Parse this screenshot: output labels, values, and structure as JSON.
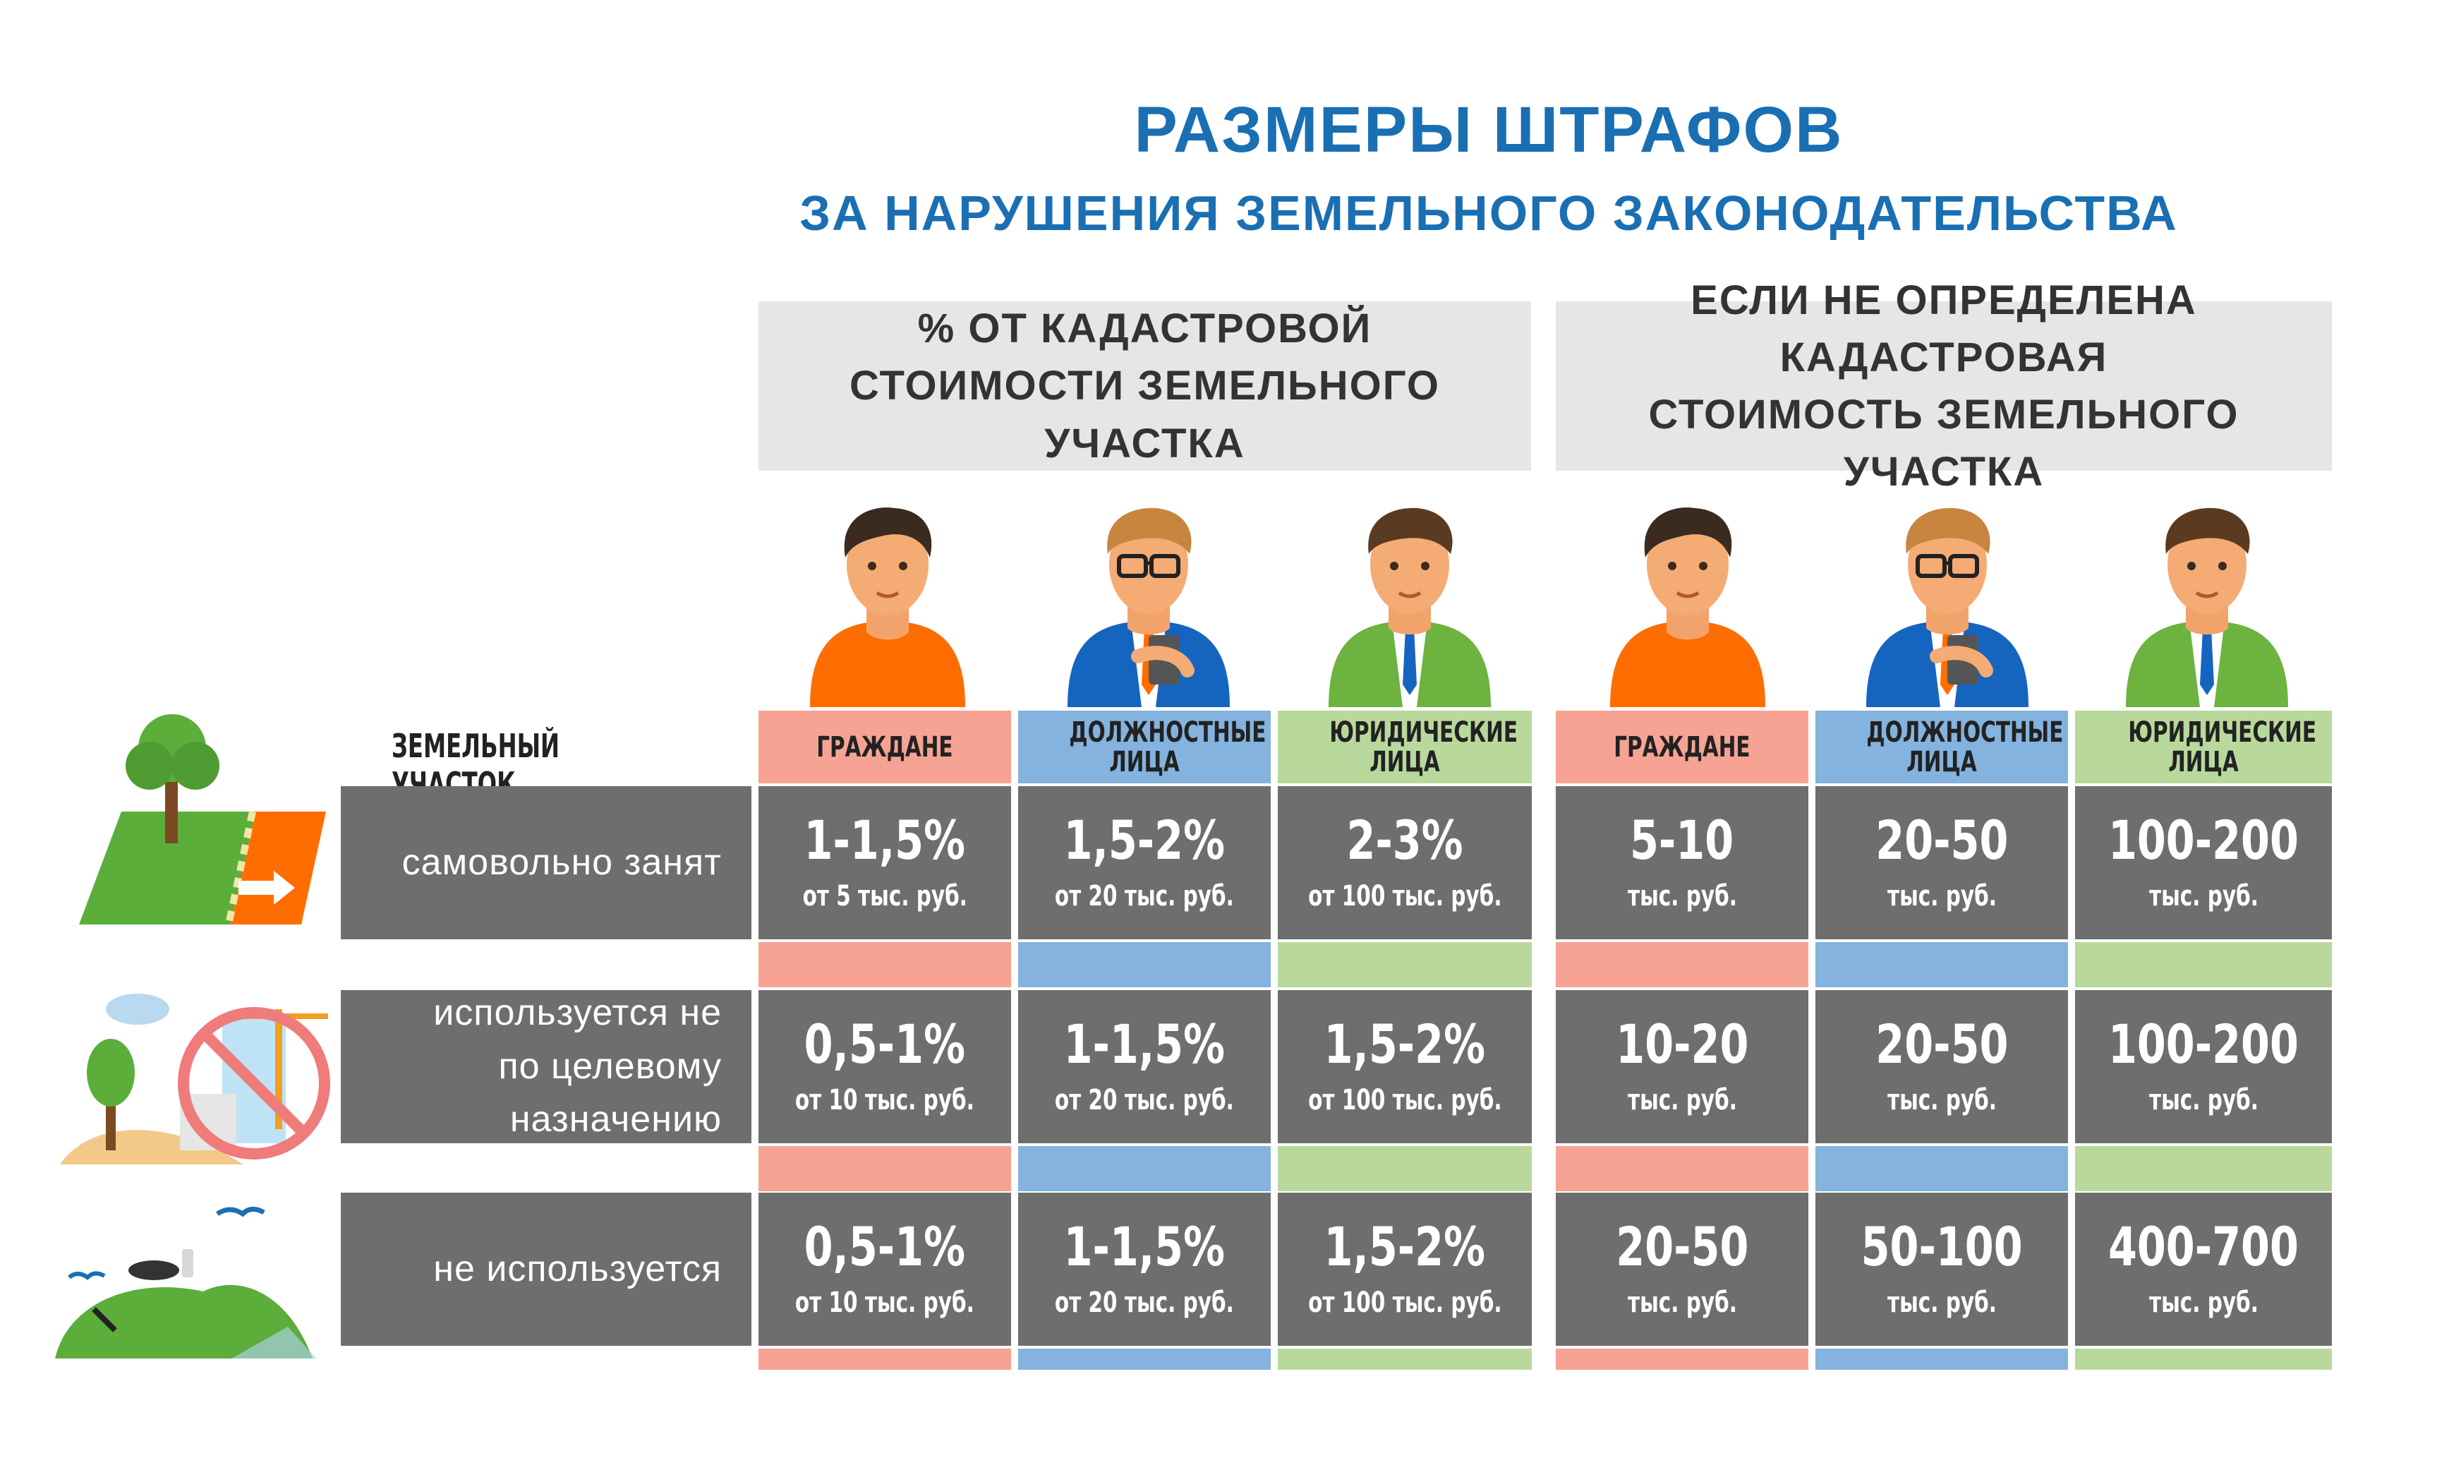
{
  "title": "РАЗМЕРЫ ШТРАФОВ",
  "subtitle": "ЗА НАРУШЕНИЯ ЗЕМЕЛЬНОГО ЗАКОНОДАТЕЛЬСТВА",
  "header_left": "% ОТ КАДАСТРОВОЙ СТОИМОСТИ ЗЕМЕЛЬНОГО УЧАСТКА",
  "header_right": "ЕСЛИ НЕ ОПРЕДЕЛЕНА КАДАСТРОВАЯ СТОИМОСТЬ ЗЕМЕЛЬНОГО УЧАСТКА",
  "land_label": "ЗЕМЕЛЬНЫЙ УЧАСТОК",
  "categories": [
    "ГРАЖДАНЕ",
    "ДОЛЖНОСТНЫЕ ЛИЦА",
    "ЮРИДИЧЕСКИЕ ЛИЦА",
    "ГРАЖДАНЕ",
    "ДОЛЖНОСТНЫЕ ЛИЦА",
    "ЮРИДИЧЕСКИЕ ЛИЦА"
  ],
  "category_colors": [
    "#f7a394",
    "#83b3de",
    "#b8d99b"
  ],
  "rows": [
    {
      "label": "самовольно занят",
      "cells": [
        {
          "main": "1-1,5%",
          "sub": "от 5 тыс. руб."
        },
        {
          "main": "1,5-2%",
          "sub": "от 20 тыс. руб."
        },
        {
          "main": "2-3%",
          "sub": "от 100 тыс. руб."
        },
        {
          "main": "5-10",
          "sub": "тыс. руб."
        },
        {
          "main": "20-50",
          "sub": "тыс. руб."
        },
        {
          "main": "100-200",
          "sub": "тыс. руб."
        }
      ]
    },
    {
      "label": "используется не по целевому назначению",
      "cells": [
        {
          "main": "0,5-1%",
          "sub": "от 10 тыс. руб."
        },
        {
          "main": "1-1,5%",
          "sub": "от 20 тыс. руб."
        },
        {
          "main": "1,5-2%",
          "sub": "от 100 тыс. руб."
        },
        {
          "main": "10-20",
          "sub": "тыс. руб."
        },
        {
          "main": "20-50",
          "sub": "тыс. руб."
        },
        {
          "main": "100-200",
          "sub": "тыс. руб."
        }
      ]
    },
    {
      "label": "не используется",
      "cells": [
        {
          "main": "0,5-1%",
          "sub": "от 10 тыс. руб."
        },
        {
          "main": "1-1,5%",
          "sub": "от 20 тыс. руб."
        },
        {
          "main": "1,5-2%",
          "sub": "от 100 тыс. руб."
        },
        {
          "main": "20-50",
          "sub": "тыс. руб."
        },
        {
          "main": "50-100",
          "sub": "тыс. руб."
        },
        {
          "main": "400-700",
          "sub": "тыс. руб."
        }
      ]
    }
  ],
  "icons": [
    "land-seized-icon",
    "misuse-icon",
    "unused-land-icon",
    "citizen-icon",
    "official-icon",
    "legal-entity-icon"
  ]
}
